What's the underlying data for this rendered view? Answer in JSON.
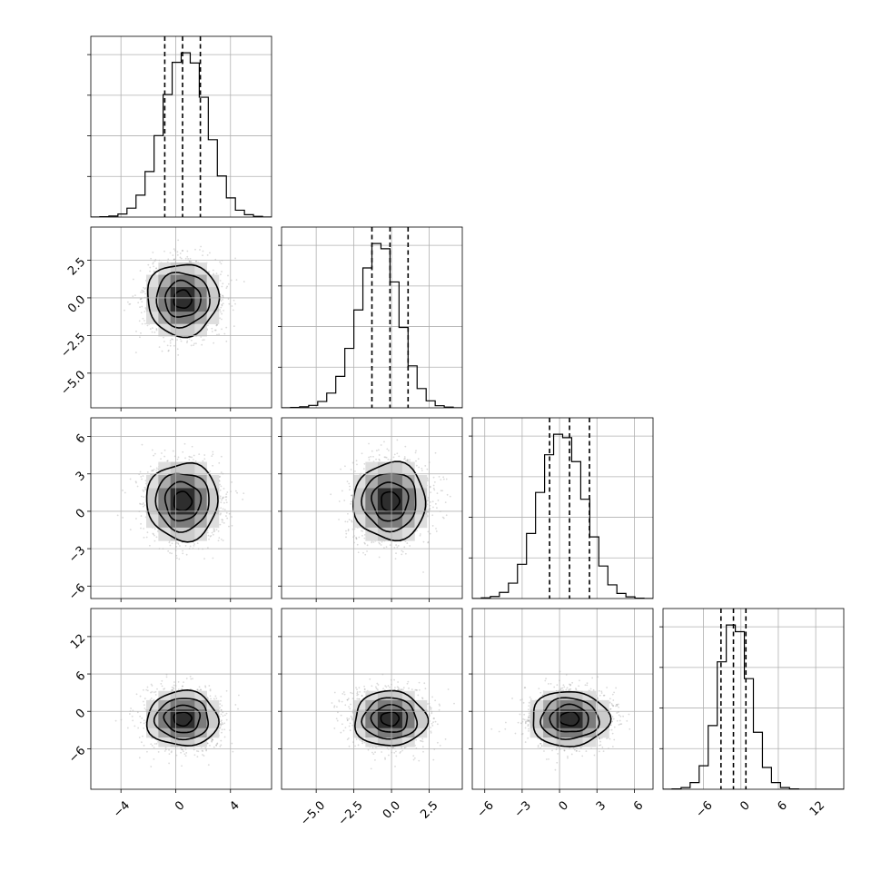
{
  "figure": {
    "title": "",
    "background": "#ffffff"
  },
  "chart_data": {
    "type": "corner",
    "title": "",
    "grid": true,
    "colors": {
      "ink": "#000000",
      "density": "#000000",
      "points": "#7a7a7a",
      "grid": "#b0b0b0"
    },
    "parameters": [
      {
        "label": "",
        "mean": 0.5,
        "sd": 1.3,
        "range": [
          -6.2,
          7.0
        ],
        "ticks": [
          -4,
          0,
          4
        ],
        "tick_labels": [
          "−4",
          "0",
          "4"
        ],
        "quantiles": [
          -0.8,
          0.5,
          1.8
        ]
      },
      {
        "label": "",
        "mean": -0.1,
        "sd": 1.2,
        "range": [
          -7.3,
          4.7
        ],
        "ticks": [
          -5.0,
          -2.5,
          0.0,
          2.5
        ],
        "tick_labels": [
          "−5.0",
          "−2.5",
          "0.0",
          "2.5"
        ],
        "quantiles": [
          -1.3,
          -0.1,
          1.1
        ]
      },
      {
        "label": "",
        "mean": 0.8,
        "sd": 1.55,
        "range": [
          -7.0,
          7.5
        ],
        "ticks": [
          -6,
          -3,
          0,
          3,
          6
        ],
        "tick_labels": [
          "−6",
          "−3",
          "0",
          "3",
          "6"
        ],
        "quantiles": [
          -0.8,
          0.8,
          2.4
        ]
      },
      {
        "label": "",
        "mean": -1.2,
        "sd": 2.2,
        "range": [
          -12.5,
          16.5
        ],
        "ticks": [
          -6,
          0,
          6,
          12
        ],
        "tick_labels": [
          "−6",
          "0",
          "6",
          "12"
        ],
        "quantiles": [
          -3.2,
          -1.2,
          0.8
        ]
      }
    ],
    "diagonal_histograms": [
      {
        "parameter": 0,
        "bin_edges": [
          -6.2,
          -5.54,
          -4.88,
          -4.22,
          -3.56,
          -2.9,
          -2.24,
          -1.58,
          -0.92,
          -0.26,
          0.4,
          1.06,
          1.72,
          2.38,
          3.04,
          3.7,
          4.36,
          5.02,
          5.68,
          6.34,
          7.0
        ],
        "counts": [
          0,
          1,
          3,
          9,
          26,
          64,
          133,
          238,
          358,
          452,
          480,
          450,
          350,
          226,
          120,
          56,
          20,
          7,
          2,
          0
        ]
      },
      {
        "parameter": 1,
        "bin_edges": [
          -7.3,
          -6.7,
          -6.1,
          -5.5,
          -4.9,
          -4.3,
          -3.7,
          -3.1,
          -2.5,
          -1.9,
          -1.3,
          -0.7,
          -0.1,
          0.5,
          1.1,
          1.7,
          2.3,
          2.9,
          3.5,
          4.1,
          4.7
        ],
        "counts": [
          0,
          1,
          3,
          7,
          18,
          42,
          90,
          170,
          280,
          400,
          470,
          455,
          360,
          230,
          120,
          55,
          20,
          6,
          2,
          0
        ]
      },
      {
        "parameter": 2,
        "bin_edges": [
          -7.0,
          -6.275,
          -5.55,
          -4.825,
          -4.1,
          -3.375,
          -2.65,
          -1.925,
          -1.2,
          -0.475,
          0.25,
          0.975,
          1.7,
          2.425,
          3.15,
          3.875,
          4.6,
          5.325,
          6.05,
          6.775,
          7.5
        ],
        "counts": [
          0,
          2,
          6,
          18,
          45,
          100,
          190,
          310,
          420,
          480,
          470,
          400,
          290,
          180,
          95,
          40,
          15,
          5,
          1,
          0
        ]
      },
      {
        "parameter": 3,
        "bin_edges": [
          -12.5,
          -11.05,
          -9.6,
          -8.15,
          -6.7,
          -5.25,
          -3.8,
          -2.35,
          -0.9,
          0.55,
          2.0,
          3.45,
          4.9,
          6.35,
          7.8,
          9.25,
          10.7,
          12.15,
          13.6,
          15.05,
          16.5
        ],
        "counts": [
          0,
          1,
          5,
          20,
          70,
          190,
          380,
          490,
          470,
          330,
          170,
          65,
          20,
          5,
          1,
          0,
          0,
          0,
          0,
          0
        ]
      }
    ],
    "density_panels": [
      {
        "x_param": 0,
        "y_param": 1,
        "correlation": 0.0
      },
      {
        "x_param": 0,
        "y_param": 2,
        "correlation": 0.0
      },
      {
        "x_param": 1,
        "y_param": 2,
        "correlation": 0.0
      },
      {
        "x_param": 0,
        "y_param": 3,
        "correlation": 0.0
      },
      {
        "x_param": 1,
        "y_param": 3,
        "correlation": 0.0
      },
      {
        "x_param": 2,
        "y_param": 3,
        "correlation": 0.0
      }
    ],
    "contour_sigma_levels": [
      0.5,
      1.0,
      1.5,
      2.0
    ],
    "scatter_samples_per_panel": 2000
  }
}
